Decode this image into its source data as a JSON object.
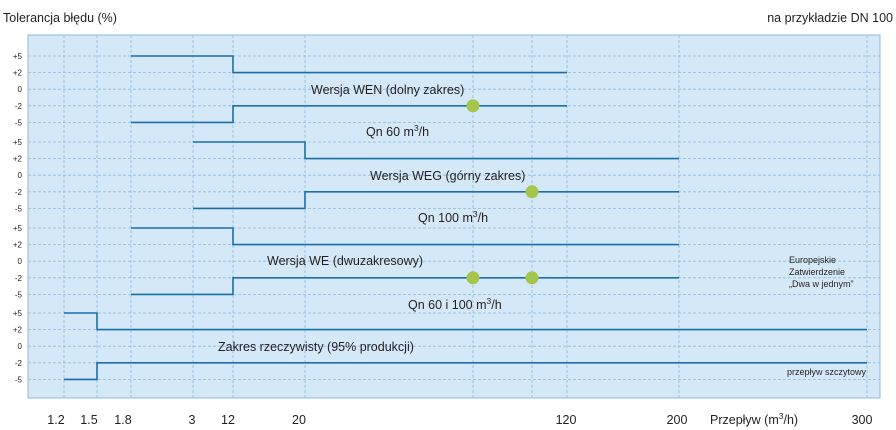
{
  "chart_data": {
    "type": "step-line",
    "title": "Tolerancja błędu (%)",
    "subtitle": "na przykładzie DN 100",
    "xlabel_prefix": "Przepływ (m",
    "xlabel_sup": "3",
    "xlabel_suffix": "/h)",
    "x_ticks": [
      "1.2",
      "1.5",
      "1.8",
      "3",
      "12",
      "20",
      "120",
      "200",
      "300"
    ],
    "y_ticks": [
      "+5",
      "+2",
      "0",
      "-2",
      "-5"
    ],
    "grid": true,
    "colors": {
      "background": "#d5e8f7",
      "grid": "#8fb8dd",
      "line": "#1a6faa",
      "marker": "#a6c54b",
      "text": "#231f20"
    },
    "panels": [
      {
        "name": "Wersja WEN (dolny zakres)",
        "upper": [
          [
            "1.8",
            "+5"
          ],
          [
            "12",
            "+5"
          ],
          [
            "12",
            "+2"
          ],
          [
            "120",
            "+2"
          ]
        ],
        "lower": [
          [
            "1.8",
            "-5"
          ],
          [
            "12",
            "-5"
          ],
          [
            "12",
            "-2"
          ],
          [
            "120",
            "-2"
          ]
        ],
        "markers": [
          [
            "between 20 and 120",
            "-2"
          ]
        ]
      },
      {
        "name": "Wersja WEG (górny zakres)",
        "upper": [
          [
            "3",
            "+5"
          ],
          [
            "20",
            "+5"
          ],
          [
            "20",
            "+2"
          ],
          [
            "200",
            "+2"
          ]
        ],
        "lower": [
          [
            "3",
            "-5"
          ],
          [
            "20",
            "-5"
          ],
          [
            "20",
            "-2"
          ],
          [
            "200",
            "-2"
          ]
        ],
        "markers": [
          [
            "between 20 and 120",
            "-2"
          ]
        ]
      },
      {
        "name": "Wersja WE (dwuzakresowy)",
        "upper": [
          [
            "1.8",
            "+5"
          ],
          [
            "12",
            "+5"
          ],
          [
            "12",
            "+2"
          ],
          [
            "200",
            "+2"
          ]
        ],
        "lower": [
          [
            "1.8",
            "-5"
          ],
          [
            "12",
            "-5"
          ],
          [
            "12",
            "-2"
          ],
          [
            "200",
            "-2"
          ]
        ],
        "markers": [
          [
            "between 20 and 120",
            "-2"
          ],
          [
            "between 20 and 120",
            "-2"
          ]
        ]
      },
      {
        "name": "Zakres rzeczywisty (95% produkcji)",
        "upper": [
          [
            "1.2",
            "+5"
          ],
          [
            "1.5",
            "+5"
          ],
          [
            "1.5",
            "+2"
          ],
          [
            "300",
            "+2"
          ]
        ],
        "lower": [
          [
            "1.2",
            "-5"
          ],
          [
            "1.5",
            "-5"
          ],
          [
            "1.5",
            "-2"
          ],
          [
            "300",
            "-2"
          ]
        ],
        "markers": []
      }
    ],
    "annotations": {
      "wen": "Wersja WEN (dolny zakres)",
      "qn60": {
        "prefix": "Qn 60 m",
        "sup": "3",
        "suffix": "/h"
      },
      "weg": "Wersja WEG (górny zakres)",
      "qn100": {
        "prefix": "Qn 100 m",
        "sup": "3",
        "suffix": "/h"
      },
      "we": "Wersja WE (dwuzakresowy)",
      "qn60_100": {
        "prefix": "Qn 60 i 100 m",
        "sup": "3",
        "suffix": "/h"
      },
      "real": "Zakres rzeczywisty (95% produkcji)",
      "euro_1": "Europejskie",
      "euro_2": "Zatwierdzenie",
      "euro_3": "„Dwa w jednym”",
      "peak": "przepływ szczytowy"
    }
  }
}
